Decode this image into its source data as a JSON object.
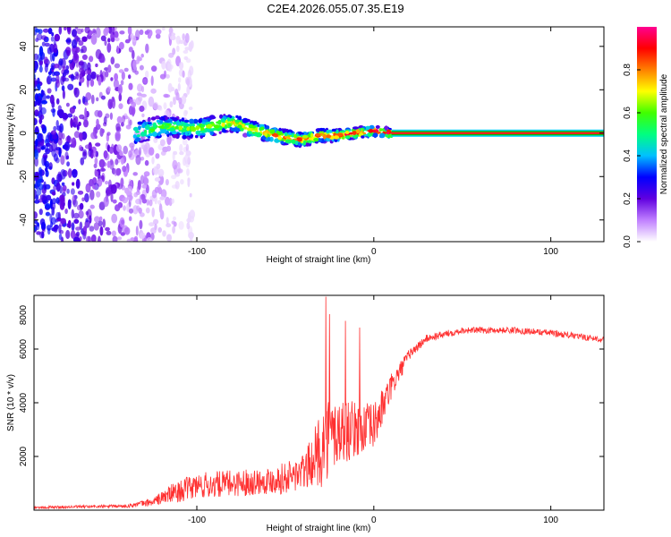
{
  "title": "C2E4.2026.055.07.35.E19",
  "chart_data": [
    {
      "type": "heatmap",
      "name": "spectrogram",
      "xlabel": "Height of straight line (km)",
      "ylabel": "Frequency (Hz)",
      "xlim": [
        -192,
        130
      ],
      "ylim": [
        -50,
        49
      ],
      "xticks": [
        -100,
        0,
        100
      ],
      "yticks": [
        -40,
        -20,
        0,
        20,
        40
      ],
      "noise_region_x": [
        -192,
        -110
      ],
      "signal_track": {
        "x": [
          -135,
          -120,
          -100,
          -80,
          -70,
          -60,
          -50,
          -40,
          -30,
          -20,
          -10,
          0,
          10
        ],
        "freq_hz": [
          0,
          3,
          2,
          5,
          2,
          0,
          -2,
          -3,
          -1,
          -1,
          0,
          1,
          0
        ]
      },
      "steady_line": {
        "x": [
          10,
          130
        ],
        "freq_hz": 0
      },
      "colorbar": {
        "label": "Normalized spectral amplitude",
        "range": [
          0,
          1
        ],
        "ticks": [
          "0.0",
          "0.2",
          "0.4",
          "0.6",
          "0.8"
        ],
        "tick_values": [
          0,
          0.2,
          0.4,
          0.6,
          0.8
        ],
        "colors": [
          "#ffffff",
          "#c080ff",
          "#6000e0",
          "#0000ff",
          "#00c0ff",
          "#00ff80",
          "#40ff00",
          "#ffff00",
          "#ff8000",
          "#ff0000",
          "#ff0090"
        ]
      },
      "colors": {
        "steady_core": "#ff2020",
        "steady_edge": "#00c000",
        "steady_outer": "#00d0ff"
      }
    },
    {
      "type": "line",
      "name": "snr",
      "xlabel": "Height of straight line (km)",
      "ylabel": "SNR (10 * v/v)",
      "xlim": [
        -192,
        130
      ],
      "ylim": [
        0,
        8000
      ],
      "xticks": [
        -100,
        0,
        100
      ],
      "yticks": [
        2000,
        4000,
        6000,
        8000
      ],
      "color": "#ff3030",
      "envelope": {
        "x": [
          -192,
          -140,
          -125,
          -115,
          -100,
          -80,
          -60,
          -50,
          -40,
          -35,
          -30,
          -25,
          -20,
          -10,
          0,
          10,
          20,
          30,
          50,
          80,
          100,
          130
        ],
        "mean": [
          100,
          150,
          300,
          600,
          900,
          1000,
          1100,
          1200,
          1400,
          1800,
          2300,
          2800,
          2900,
          3000,
          3100,
          4600,
          5800,
          6400,
          6700,
          6700,
          6600,
          6350
        ],
        "amp": [
          50,
          60,
          150,
          350,
          500,
          500,
          500,
          600,
          700,
          900,
          1500,
          1500,
          1400,
          1000,
          900,
          500,
          200,
          150,
          120,
          120,
          120,
          120
        ]
      },
      "spikes": [
        {
          "x": -27,
          "value": 7950
        },
        {
          "x": -25,
          "value": 7300
        },
        {
          "x": -16,
          "value": 7050
        },
        {
          "x": -8,
          "value": 6800
        }
      ]
    }
  ]
}
